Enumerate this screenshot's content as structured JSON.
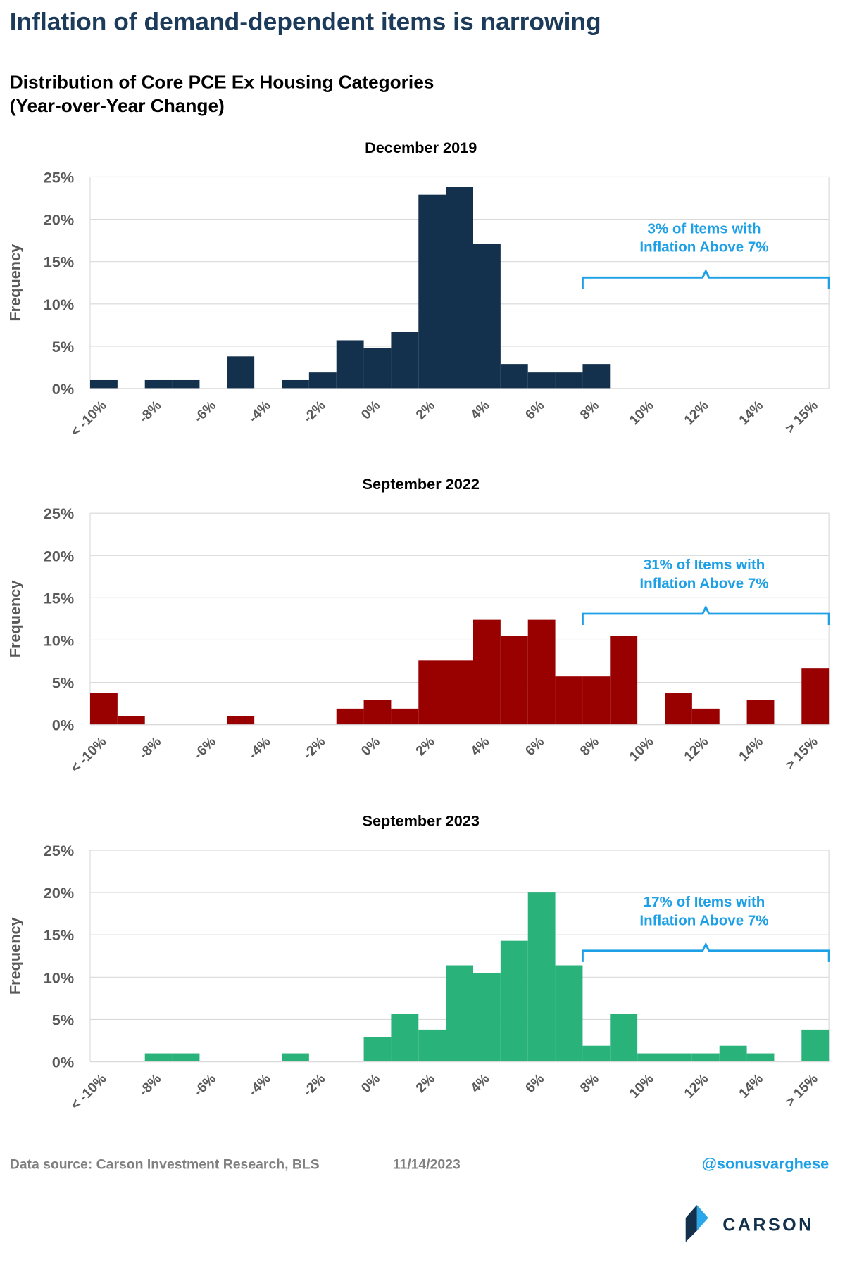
{
  "title": "Inflation of demand-dependent items is narrowing",
  "subtitle": [
    "Distribution of Core PCE Ex Housing Categories",
    "(Year-over-Year Change)"
  ],
  "chart_data": [
    {
      "type": "bar",
      "title": "December 2019",
      "ylabel": "Frequency",
      "categories": [
        "< -10%",
        null,
        "-8%",
        null,
        "-6%",
        null,
        "-4%",
        null,
        "-2%",
        null,
        "0%",
        null,
        "2%",
        null,
        "4%",
        null,
        "6%",
        null,
        "8%",
        null,
        "10%",
        null,
        "12%",
        null,
        "14%",
        null,
        "> 15%"
      ],
      "values": [
        1,
        0,
        1,
        1,
        0,
        3.8,
        0,
        1,
        1.9,
        5.7,
        4.8,
        6.7,
        22.9,
        23.8,
        17.1,
        2.9,
        1.9,
        1.9,
        2.9,
        0,
        0,
        0,
        0,
        0,
        0,
        0,
        0
      ],
      "color": "#13304d",
      "ylim": [
        0,
        25
      ],
      "yticks": [
        {
          "value": 0,
          "label": "0%"
        },
        {
          "value": 5,
          "label": "5%"
        },
        {
          "value": 10,
          "label": "10%"
        },
        {
          "value": 15,
          "label": "15%"
        },
        {
          "value": 20,
          "label": "20%"
        },
        {
          "value": 25,
          "label": "25%"
        }
      ],
      "grid": true,
      "annotation": [
        "3% of Items with",
        "Inflation Above 7%"
      ]
    },
    {
      "type": "bar",
      "title": "September 2022",
      "ylabel": "Frequency",
      "categories": [
        "< -10%",
        null,
        "-8%",
        null,
        "-6%",
        null,
        "-4%",
        null,
        "-2%",
        null,
        "0%",
        null,
        "2%",
        null,
        "4%",
        null,
        "6%",
        null,
        "8%",
        null,
        "10%",
        null,
        "12%",
        null,
        "14%",
        null,
        "> 15%"
      ],
      "values": [
        3.8,
        1,
        0,
        0,
        0,
        1,
        0,
        0,
        0,
        1.9,
        2.9,
        1.9,
        7.6,
        7.6,
        12.4,
        10.5,
        12.4,
        5.7,
        5.7,
        10.5,
        0,
        3.8,
        1.9,
        0,
        2.9,
        0,
        6.7
      ],
      "color": "#990000",
      "ylim": [
        0,
        25
      ],
      "yticks": [
        {
          "value": 0,
          "label": "0%"
        },
        {
          "value": 5,
          "label": "5%"
        },
        {
          "value": 10,
          "label": "10%"
        },
        {
          "value": 15,
          "label": "15%"
        },
        {
          "value": 20,
          "label": "20%"
        },
        {
          "value": 25,
          "label": "25%"
        }
      ],
      "grid": true,
      "annotation": [
        "31% of Items with",
        "Inflation Above 7%"
      ]
    },
    {
      "type": "bar",
      "title": "September 2023",
      "ylabel": "Frequency",
      "categories": [
        "< -10%",
        null,
        "-8%",
        null,
        "-6%",
        null,
        "-4%",
        null,
        "-2%",
        null,
        "0%",
        null,
        "2%",
        null,
        "4%",
        null,
        "6%",
        null,
        "8%",
        null,
        "10%",
        null,
        "12%",
        null,
        "14%",
        null,
        "> 15%"
      ],
      "values": [
        0,
        0,
        1,
        1,
        0,
        0,
        0,
        1,
        0,
        0,
        2.9,
        5.7,
        3.8,
        11.4,
        10.5,
        14.3,
        20,
        11.4,
        1.9,
        5.7,
        1,
        1,
        1,
        1.9,
        1,
        0,
        3.8
      ],
      "color": "#2ab27b",
      "ylim": [
        0,
        25
      ],
      "yticks": [
        {
          "value": 0,
          "label": "0%"
        },
        {
          "value": 5,
          "label": "5%"
        },
        {
          "value": 10,
          "label": "10%"
        },
        {
          "value": 15,
          "label": "15%"
        },
        {
          "value": 20,
          "label": "20%"
        },
        {
          "value": 25,
          "label": "25%"
        }
      ],
      "grid": true,
      "annotation": [
        "17% of Items with",
        "Inflation Above 7%"
      ]
    }
  ],
  "footer": {
    "source": "Data source: Carson Investment Research, BLS",
    "date": "11/14/2023",
    "handle": "@sonusvarghese"
  },
  "logo": "CARSON"
}
